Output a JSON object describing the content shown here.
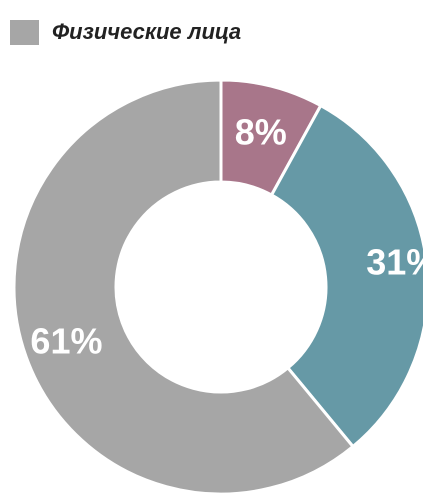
{
  "chart_data": {
    "type": "pie",
    "title": "",
    "legend": {
      "placement": "top-left",
      "label": "Физические лица",
      "swatch_color": "#a6a6a6"
    },
    "slices": [
      {
        "value": 8,
        "label": "8%",
        "color": "#a8768a"
      },
      {
        "value": 31,
        "label": "31%",
        "color": "#6699a6"
      },
      {
        "value": 61,
        "label": "61%",
        "color": "#a6a6a6"
      }
    ],
    "start_angle_deg": 0,
    "direction": "clockwise",
    "donut": true
  }
}
